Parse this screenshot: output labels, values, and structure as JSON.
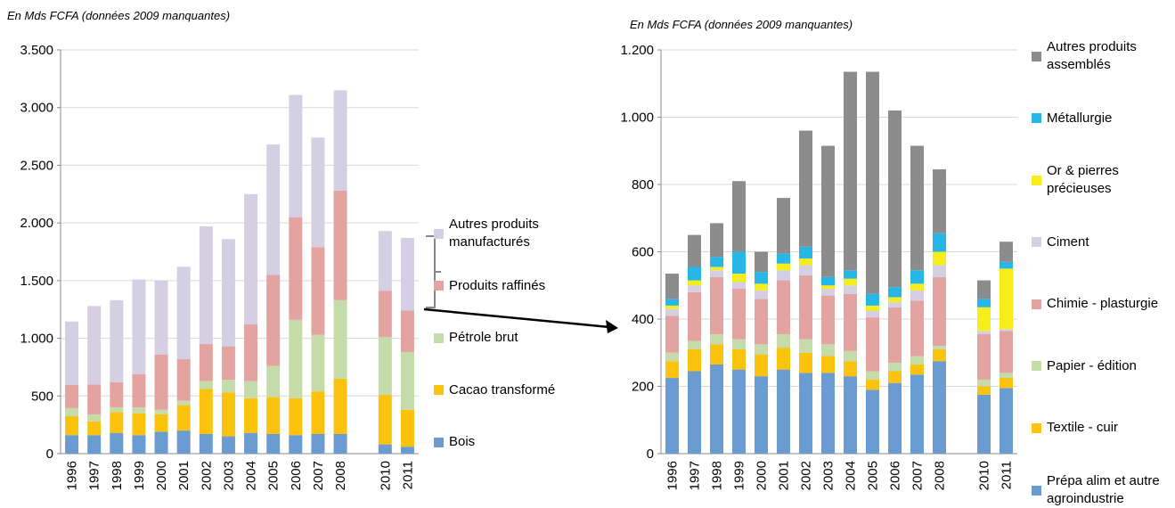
{
  "chart_data": [
    {
      "type": "bar",
      "stacked": true,
      "subtitle": "En Mds FCFA (données 2009 manquantes)",
      "categories": [
        "1996",
        "1997",
        "1998",
        "1999",
        "2000",
        "2001",
        "2002",
        "2003",
        "2004",
        "2005",
        "2006",
        "2007",
        "2008",
        null,
        "2010",
        "2011"
      ],
      "ylim": [
        0,
        3500
      ],
      "yticks": [
        0,
        500,
        {
          "value": 1000,
          "label": "1.000"
        },
        {
          "value": 1500,
          "label": "1.500"
        },
        {
          "value": 2000,
          "label": "2.000"
        },
        {
          "value": 2500,
          "label": "2.500"
        },
        {
          "value": 3000,
          "label": "3.000"
        },
        {
          "value": 3500,
          "label": "3.500"
        }
      ],
      "grid": true,
      "series": [
        {
          "name": "Bois",
          "color": "#6a9bd1",
          "values": [
            160,
            160,
            180,
            160,
            190,
            200,
            170,
            150,
            180,
            170,
            160,
            170,
            170,
            null,
            80,
            60
          ]
        },
        {
          "name": "Cacao transformé",
          "color": "#fbc20e",
          "values": [
            165,
            120,
            180,
            190,
            150,
            220,
            390,
            380,
            300,
            320,
            320,
            370,
            480,
            null,
            430,
            320
          ]
        },
        {
          "name": "Pétrole brut",
          "color": "#c5dcaa",
          "values": [
            70,
            60,
            40,
            50,
            40,
            40,
            70,
            110,
            150,
            270,
            680,
            490,
            680,
            null,
            500,
            500
          ]
        },
        {
          "name": "Produits raffinés",
          "color": "#e3a3a1",
          "values": [
            200,
            260,
            220,
            290,
            480,
            360,
            320,
            290,
            490,
            790,
            890,
            760,
            950,
            null,
            400,
            360
          ]
        },
        {
          "name": "Autres produits manufacturés",
          "color": "#d5cfe3",
          "values": [
            550,
            680,
            710,
            820,
            640,
            800,
            1020,
            930,
            1130,
            1130,
            1060,
            950,
            870,
            null,
            520,
            630
          ]
        }
      ]
    },
    {
      "type": "bar",
      "stacked": true,
      "subtitle": "En Mds FCFA (données 2009 manquantes)",
      "categories": [
        "1996",
        "1997",
        "1998",
        "1999",
        "2000",
        "2001",
        "2002",
        "2003",
        "2004",
        "2005",
        "2006",
        "2007",
        "2008",
        null,
        "2010",
        "2011"
      ],
      "ylim": [
        0,
        1200
      ],
      "yticks": [
        0,
        200,
        400,
        600,
        800,
        {
          "value": 1000,
          "label": "1.000"
        },
        {
          "value": 1200,
          "label": "1.200"
        }
      ],
      "grid": true,
      "series": [
        {
          "name": "Prépa alim et autre agroindustrie",
          "color": "#6a9bd1",
          "values": [
            225,
            245,
            265,
            250,
            230,
            250,
            240,
            240,
            230,
            190,
            210,
            235,
            275,
            null,
            175,
            195
          ]
        },
        {
          "name": "Textile - cuir",
          "color": "#fbc20e",
          "values": [
            50,
            65,
            60,
            60,
            65,
            65,
            60,
            50,
            45,
            30,
            35,
            30,
            35,
            null,
            25,
            30
          ]
        },
        {
          "name": "Papier - édition",
          "color": "#c5dcaa",
          "values": [
            25,
            25,
            30,
            30,
            30,
            40,
            40,
            35,
            30,
            25,
            25,
            25,
            10,
            null,
            20,
            15
          ]
        },
        {
          "name": "Chimie - plasturgie",
          "color": "#e3a3a1",
          "values": [
            110,
            145,
            170,
            150,
            135,
            160,
            190,
            145,
            170,
            160,
            165,
            165,
            205,
            null,
            135,
            125
          ]
        },
        {
          "name": "Ciment",
          "color": "#d5cfe3",
          "values": [
            20,
            20,
            20,
            20,
            25,
            30,
            30,
            20,
            25,
            20,
            15,
            30,
            35,
            null,
            10,
            5
          ]
        },
        {
          "name": "Or & pierres précieuses",
          "color": "#f5ee1a",
          "values": [
            10,
            15,
            10,
            25,
            20,
            20,
            20,
            10,
            20,
            15,
            15,
            20,
            40,
            null,
            70,
            180
          ]
        },
        {
          "name": "Métallurgie",
          "color": "#27b6e6",
          "values": [
            20,
            40,
            30,
            65,
            35,
            30,
            35,
            25,
            25,
            35,
            30,
            40,
            55,
            null,
            25,
            20
          ]
        },
        {
          "name": "Autres produits assemblés",
          "color": "#8c8c8c",
          "values": [
            75,
            95,
            100,
            210,
            60,
            165,
            345,
            390,
            590,
            660,
            525,
            370,
            190,
            null,
            55,
            60
          ]
        }
      ]
    }
  ]
}
